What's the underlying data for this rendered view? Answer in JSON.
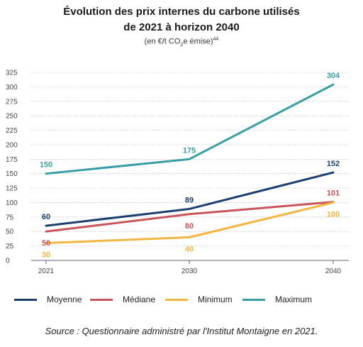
{
  "title_line1": "Évolution des prix internes du carbone utilisés",
  "title_line2": "de 2021 à horizon 2040",
  "subtitle_pre": "(en €/t CO",
  "subtitle_sub": "2",
  "subtitle_post": "e émise)",
  "subtitle_sup": "44",
  "source": "Source : Questionnaire administré par l'Institut Montaigne en 2021.",
  "chart_data": {
    "type": "line",
    "x": [
      "2021",
      "2030",
      "2040"
    ],
    "ylim": [
      0,
      325
    ],
    "yticks": [
      0,
      25,
      50,
      75,
      100,
      125,
      150,
      175,
      200,
      225,
      250,
      275,
      300,
      325
    ],
    "grid": true,
    "legend_position": "bottom",
    "series": [
      {
        "name": "Moyenne",
        "values": [
          60,
          89,
          152
        ],
        "color": "#1b3f6e"
      },
      {
        "name": "Médiane",
        "values": [
          50,
          80,
          101
        ],
        "color": "#c9545a"
      },
      {
        "name": "Minimum",
        "values": [
          30,
          40,
          100
        ],
        "color": "#f2b541"
      },
      {
        "name": "Maximum",
        "values": [
          150,
          175,
          304
        ],
        "color": "#3a9ea5"
      }
    ]
  }
}
